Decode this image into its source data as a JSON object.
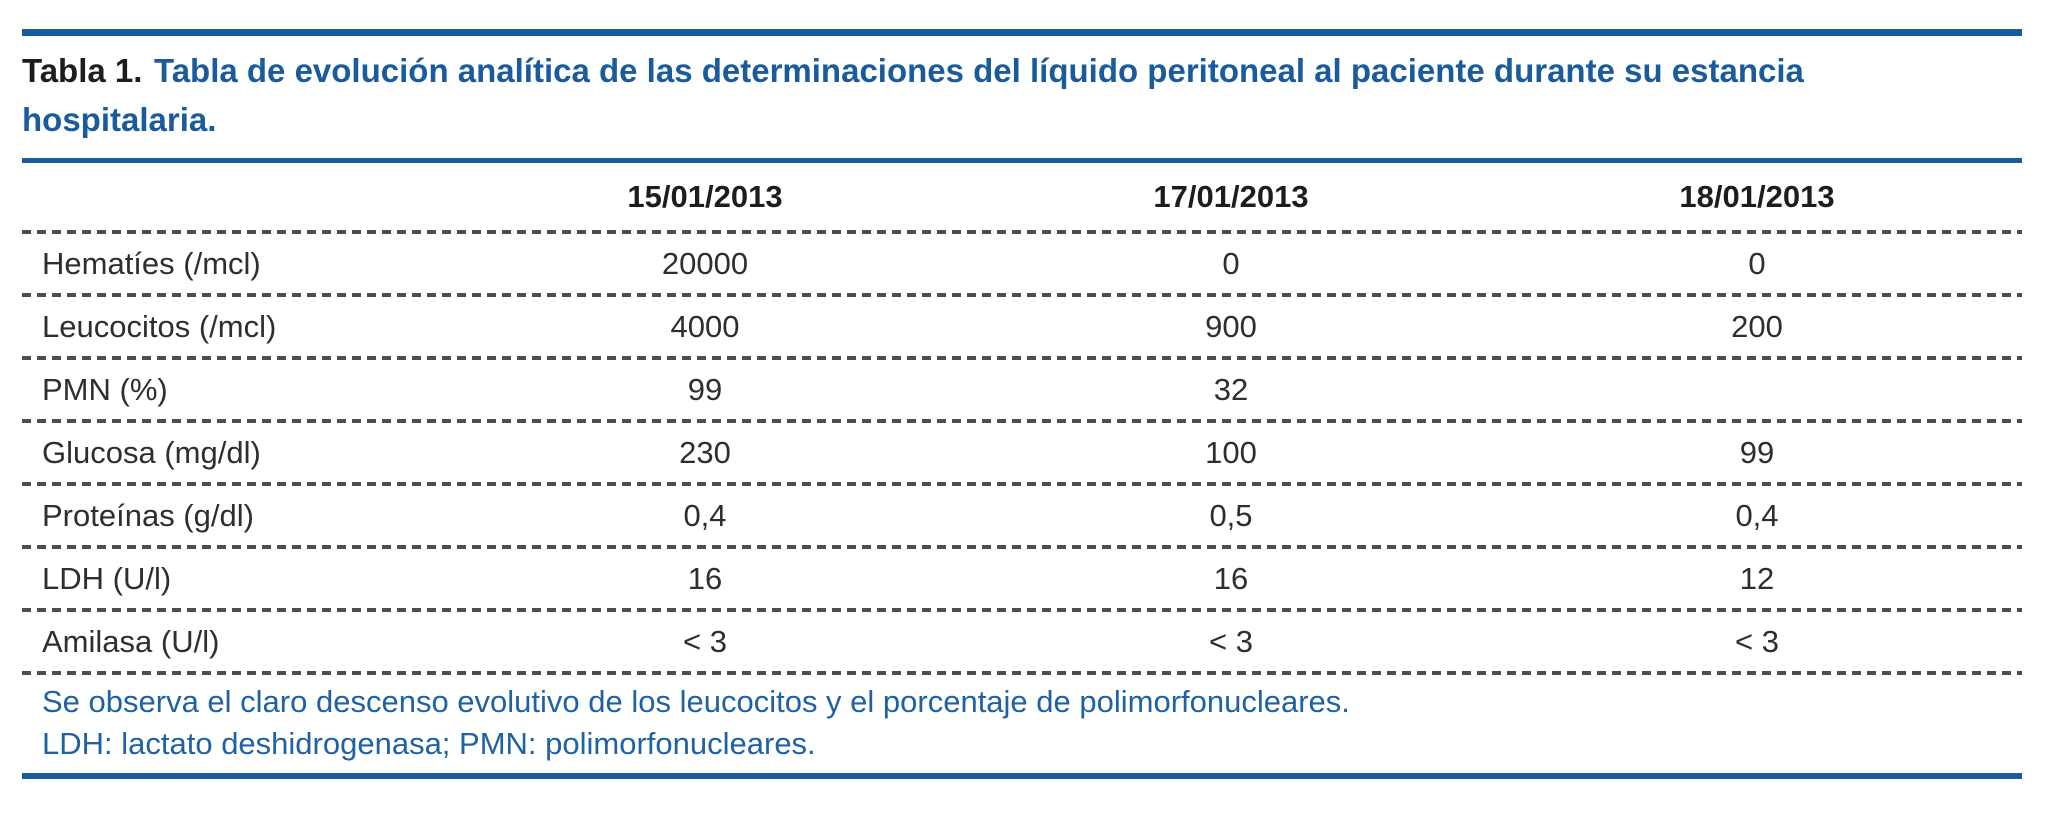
{
  "colors": {
    "accent_blue": "#1a5b9c",
    "footnote_blue": "#1e62a3",
    "dotted_rule_gray": "#4d4d4d",
    "body_text": "#2e2e2e",
    "caption_label_black": "#1d1d1f",
    "background": "#ffffff"
  },
  "title": {
    "label": "Tabla 1.",
    "text": "Tabla de evolución analítica de las determinaciones del líquido peritoneal al paciente durante su estancia hospitalaria."
  },
  "table": {
    "columns": [
      "15/01/2013",
      "17/01/2013",
      "18/01/2013"
    ],
    "rows": [
      {
        "label": "Hematíes (/mcl)",
        "values": [
          "20000",
          "0",
          "0"
        ]
      },
      {
        "label": "Leucocitos (/mcl)",
        "values": [
          "4000",
          "900",
          "200"
        ]
      },
      {
        "label": "PMN (%)",
        "values": [
          "99",
          "32",
          ""
        ]
      },
      {
        "label": "Glucosa (mg/dl)",
        "values": [
          "230",
          "100",
          "99"
        ]
      },
      {
        "label": "Proteínas (g/dl)",
        "values": [
          "0,4",
          "0,5",
          "0,4"
        ]
      },
      {
        "label": "LDH (U/l)",
        "values": [
          "16",
          "16",
          "12"
        ]
      },
      {
        "label": "Amilasa (U/l)",
        "values": [
          "< 3",
          "< 3",
          "< 3"
        ]
      }
    ]
  },
  "footnotes": [
    "Se observa el claro descenso evolutivo de los leucocitos y el porcentaje de polimorfonucleares.",
    "LDH: lactato deshidrogenasa; PMN: polimorfonucleares."
  ]
}
